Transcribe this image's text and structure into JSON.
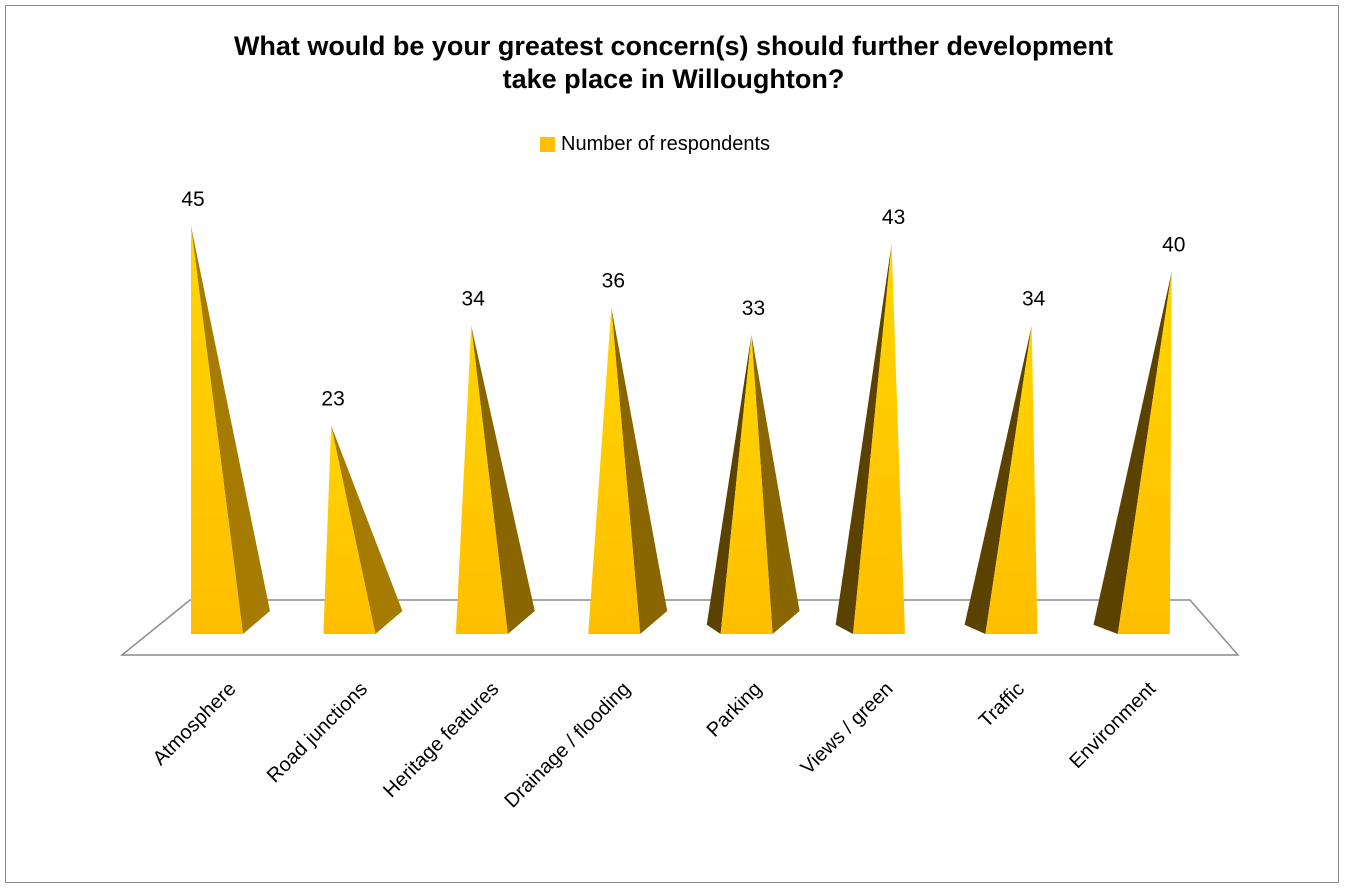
{
  "chart_data": {
    "type": "bar",
    "title_lines": [
      "What would be your greatest concern(s) should further development",
      "take place in Willoughton?"
    ],
    "categories": [
      "Atmosphere",
      "Road junctions",
      "Heritage features",
      "Drainage / flooding",
      "Parking",
      "Views / green",
      "Traffic",
      "Environment"
    ],
    "series": [
      {
        "name": "Number of respondents",
        "values": [
          45,
          23,
          34,
          36,
          33,
          43,
          34,
          40
        ]
      }
    ],
    "legend_position": "top",
    "data_labels": true,
    "grid": false,
    "ylim": [
      0,
      45
    ],
    "colors": {
      "front_face": "#ffc000",
      "side_face": "#a67c00",
      "dark_face": "#5c4200",
      "floor_line": "#8c8c8c",
      "frame": "#8c8c8c"
    }
  }
}
